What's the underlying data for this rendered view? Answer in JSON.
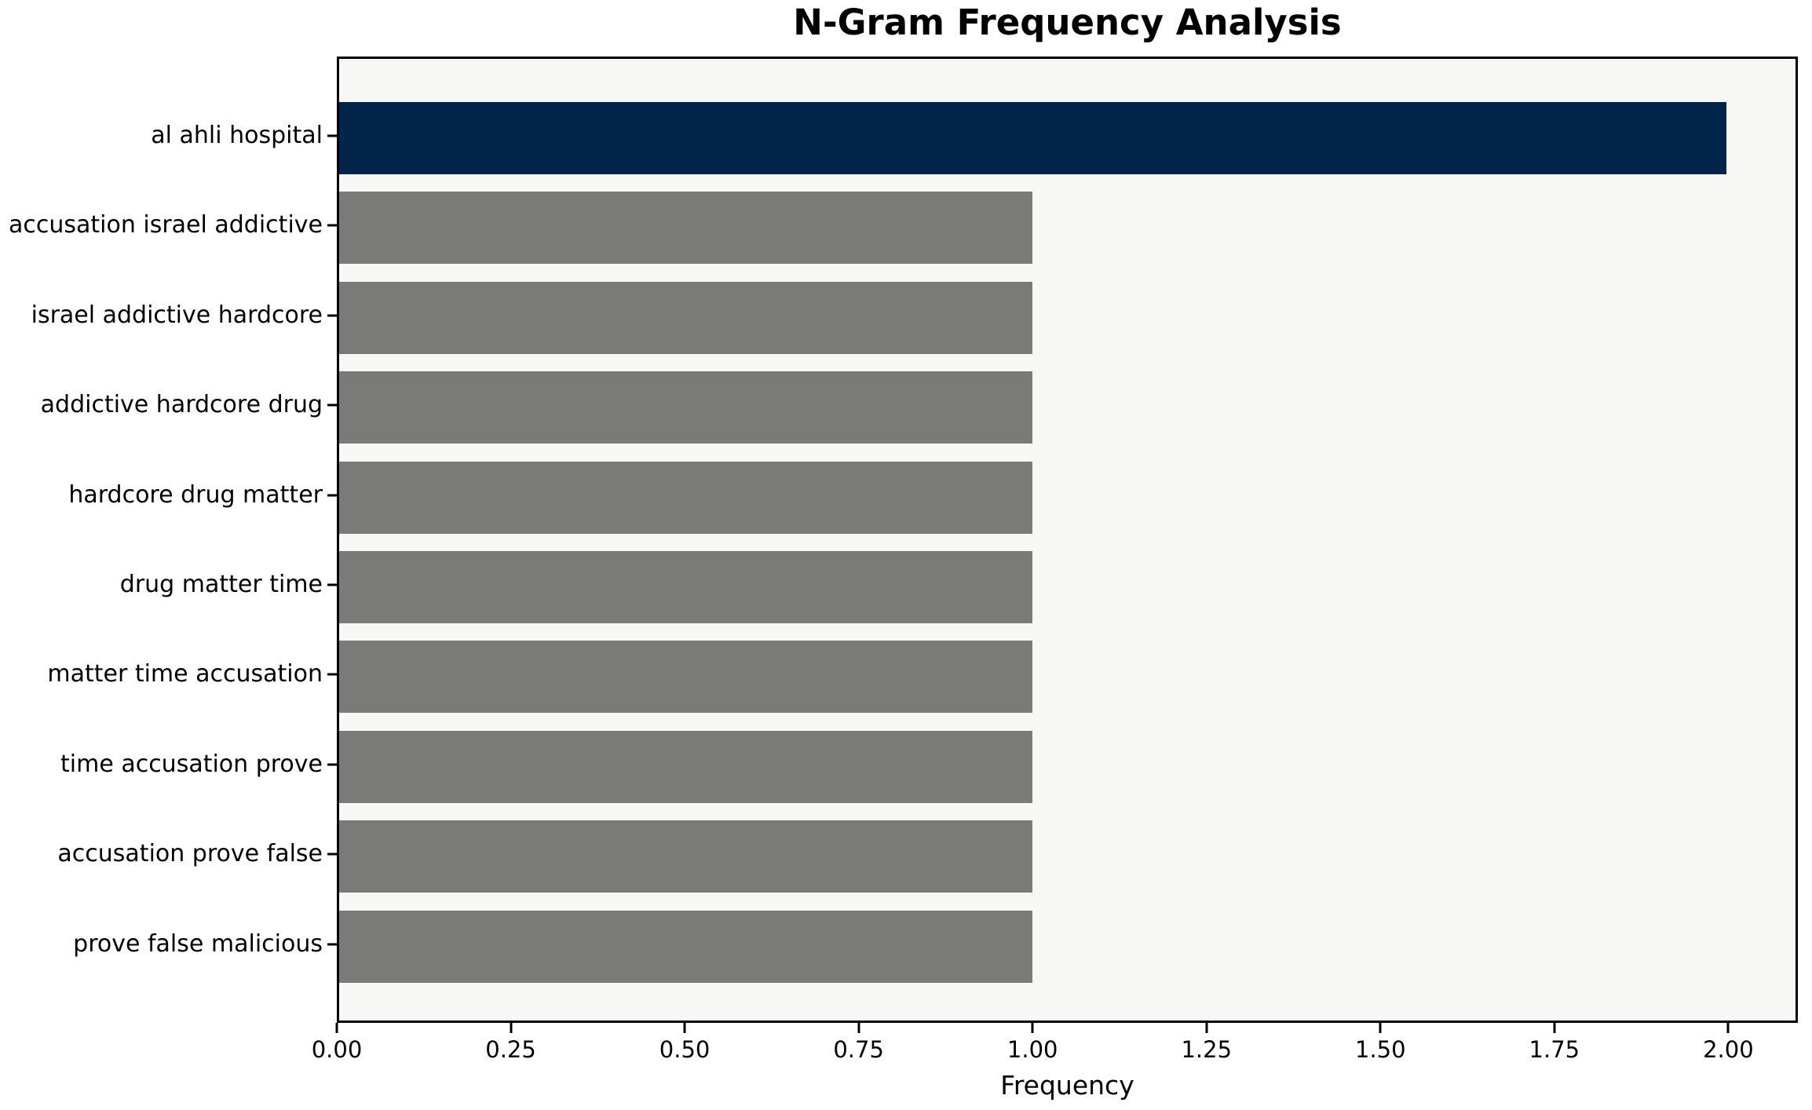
{
  "chart_data": {
    "type": "bar",
    "orientation": "horizontal",
    "title": "N-Gram Frequency Analysis",
    "xlabel": "Frequency",
    "ylabel": "",
    "categories": [
      "al ahli hospital",
      "accusation israel addictive",
      "israel addictive hardcore",
      "addictive hardcore drug",
      "hardcore drug matter",
      "drug matter time",
      "matter time accusation",
      "time accusation prove",
      "accusation prove false",
      "prove false malicious"
    ],
    "values": [
      2,
      1,
      1,
      1,
      1,
      1,
      1,
      1,
      1,
      1
    ],
    "highlight_index": 0,
    "xlim": [
      0,
      2.1
    ],
    "xticks": [
      0,
      0.25,
      0.5,
      0.75,
      1.0,
      1.25,
      1.5,
      1.75,
      2.0
    ],
    "xtick_labels": [
      "0.00",
      "0.25",
      "0.50",
      "0.75",
      "1.00",
      "1.25",
      "1.50",
      "1.75",
      "2.00"
    ],
    "grid": false,
    "legend": null,
    "colors": {
      "bar_highlight": "#02234a",
      "bar_default": "#7a7a78",
      "plot_background": "#f7f7f6",
      "figure_background": "#ffffff",
      "spine": "#000000",
      "text": "#000000"
    }
  }
}
